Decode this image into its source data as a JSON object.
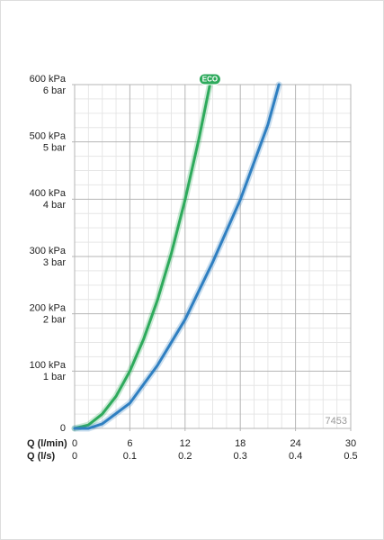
{
  "chart_data": {
    "type": "line",
    "x_label": "Q (l/min)",
    "x2_label": "Q (l/s)",
    "xlim": [
      0,
      30
    ],
    "xticks": [
      0,
      6,
      12,
      18,
      24,
      30
    ],
    "x2lim": [
      0,
      0.5
    ],
    "x2ticks": [
      0,
      0.1,
      0.2,
      0.3,
      0.4,
      0.5
    ],
    "ylim": [
      0,
      600
    ],
    "yticks": [
      0,
      {
        "value": 100,
        "label": "100 kPa"
      },
      {
        "value": 200,
        "label": "200 kPa"
      },
      {
        "value": 300,
        "label": "300 kPa"
      },
      {
        "value": 400,
        "label": "400 kPa"
      },
      {
        "value": 500,
        "label": "500 kPa"
      },
      {
        "value": 600,
        "label": "600 kPa"
      }
    ],
    "y2lim": [
      0,
      6
    ],
    "y2ticks": [
      {
        "value": 1,
        "label": "1 bar"
      },
      {
        "value": 2,
        "label": "2 bar"
      },
      {
        "value": 3,
        "label": "3 bar"
      },
      {
        "value": 4,
        "label": "4 bar"
      },
      {
        "value": 5,
        "label": "5 bar"
      },
      {
        "value": 6,
        "label": "6 bar"
      }
    ],
    "grid": true,
    "series": [
      {
        "name": "ECO",
        "color": "#2eaa5c",
        "x": [
          0,
          1.5,
          3,
          4.5,
          6,
          7.5,
          9,
          10.5,
          12,
          13.5,
          14.7
        ],
        "values": [
          0,
          6,
          25,
          56,
          100,
          156,
          224,
          305,
          399,
          505,
          600
        ]
      },
      {
        "color": "#2f7fc1",
        "x": [
          0,
          1.5,
          3,
          6,
          9,
          12,
          15,
          18,
          21,
          22.2
        ],
        "values": [
          0,
          0,
          8,
          44,
          110,
          190,
          290,
          399,
          530,
          600
        ]
      }
    ],
    "code": "7453"
  }
}
